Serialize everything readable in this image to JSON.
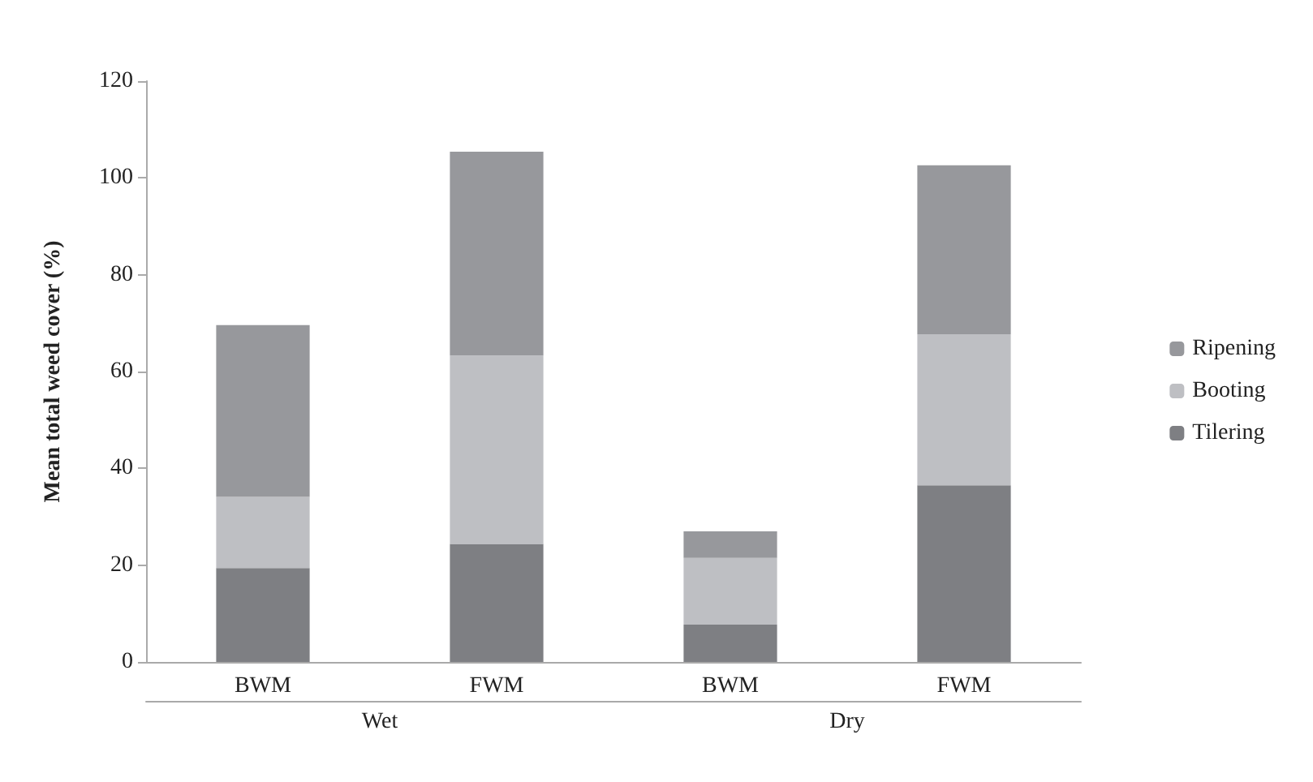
{
  "chart_data": {
    "type": "bar",
    "stacked": true,
    "ylabel": "Mean total weed cover (%)",
    "categories": [
      "BWM",
      "FWM",
      "BWM",
      "FWM"
    ],
    "series": [
      {
        "name": "Tilering",
        "color": "#7e7f83",
        "values": [
          19.4,
          24.4,
          7.7,
          36.5
        ]
      },
      {
        "name": "Booting",
        "color": "#bebfc3",
        "values": [
          14.7,
          38.9,
          13.8,
          31.2
        ]
      },
      {
        "name": "Ripening",
        "color": "#97989c",
        "values": [
          35.5,
          42.1,
          5.5,
          34.9
        ]
      }
    ],
    "annotations": [
      "Wet",
      "Dry"
    ],
    "ylim": [
      0,
      120
    ],
    "yticks": [
      0,
      20,
      40,
      60,
      80,
      100,
      120
    ],
    "grid": false,
    "legend": "right"
  }
}
